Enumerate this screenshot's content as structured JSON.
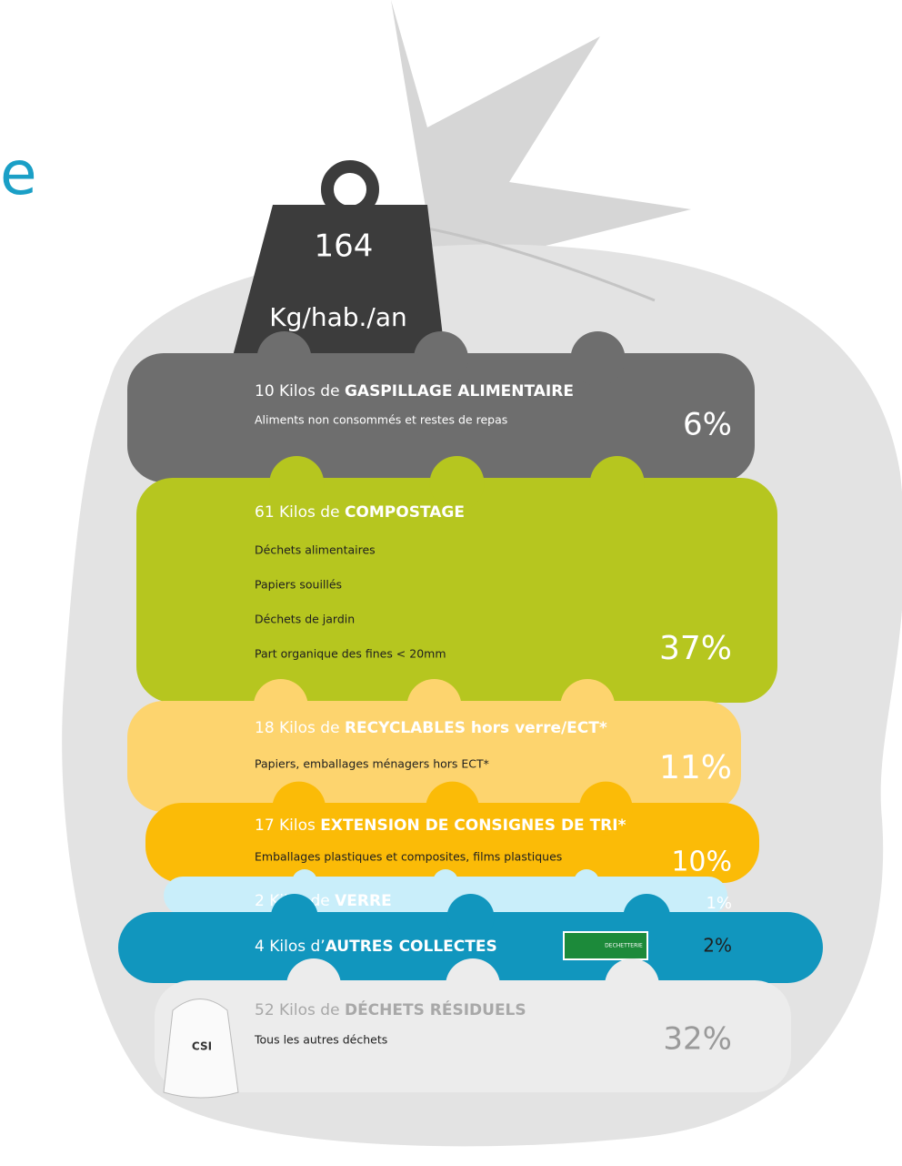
{
  "heading_fragment": "e",
  "weight": {
    "value": "164",
    "unit": "Kg/hab./an"
  },
  "layers": [
    {
      "prefix": "10 Kilos de ",
      "title": "GASPILLAGE ALIMENTAIRE",
      "lines": [
        "Aliments non consommés et restes de repas"
      ],
      "percent": "6%"
    },
    {
      "prefix": "61 Kilos de ",
      "title": "COMPOSTAGE",
      "lines": [
        "Déchets alimentaires",
        "Papiers souillés",
        "Déchets de jardin",
        "Part organique des fines < 20mm"
      ],
      "percent": "37%"
    },
    {
      "prefix": "18 Kilos de ",
      "title": "RECYCLABLES hors verre/ECT*",
      "lines": [
        "Papiers, emballages ménagers hors ECT*"
      ],
      "percent": "11%"
    },
    {
      "prefix": "17 Kilos ",
      "title": "EXTENSION DE CONSIGNES DE TRI*",
      "lines": [
        "Emballages plastiques et composites, films plastiques"
      ],
      "percent": "10%"
    },
    {
      "prefix": "2 Kilos de ",
      "title": "VERRE",
      "lines": [],
      "percent": "1%"
    },
    {
      "prefix": "4 Kilos d’",
      "title": "AUTRES COLLECTES",
      "lines": [],
      "percent": "2%",
      "badge": "DECHETTERIE"
    },
    {
      "prefix": "52 Kilos de ",
      "title": "DÉCHETS RÉSIDUELS",
      "lines": [
        "Tous les autres déchets"
      ],
      "percent": "32%",
      "bag_label": "CSI"
    }
  ]
}
